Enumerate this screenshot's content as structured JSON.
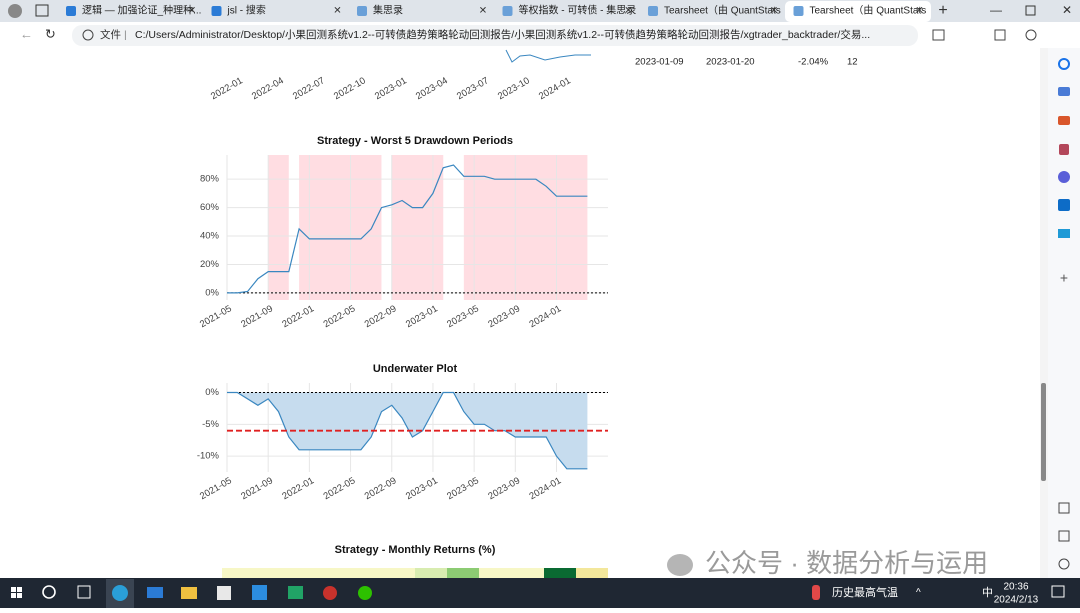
{
  "browser": {
    "tabs": [
      "逻辑 — 加强论证_种理种...",
      "jsl - 搜索",
      "集思录",
      "等权指数 - 可转债 - 集思录",
      "Tearsheet（由 QuantStats",
      "Tearsheet（由 QuantStats"
    ],
    "address_label": "文件",
    "url": "C:/Users/Administrator/Desktop/小果回测系统v1.2--可转债趋势策略轮动回测报告/小果回测系统v1.2--可转债趋势策略轮动回测报告/xgtrader_backtrader/交易..."
  },
  "top_chart": {
    "xticks": [
      "2022-01",
      "2022-04",
      "2022-07",
      "2022-10",
      "2023-01",
      "2023-04",
      "2023-07",
      "2023-10",
      "2024-01"
    ]
  },
  "table_row": [
    "2023-01-09",
    "2023-01-20",
    "-2.04%",
    "12"
  ],
  "drawdown_chart": {
    "type": "line",
    "title": "Strategy - Worst 5 Drawdown Periods",
    "x": [
      "2021-05",
      "2021-06",
      "2021-07",
      "2021-08",
      "2021-09",
      "2021-10",
      "2021-11",
      "2021-12",
      "2022-01",
      "2022-02",
      "2022-03",
      "2022-04",
      "2022-05",
      "2022-06",
      "2022-07",
      "2022-08",
      "2022-09",
      "2022-10",
      "2022-11",
      "2022-12",
      "2023-01",
      "2023-02",
      "2023-03",
      "2023-04",
      "2023-05",
      "2023-06",
      "2023-07",
      "2023-08",
      "2023-09",
      "2023-10",
      "2023-11",
      "2023-12",
      "2024-01",
      "2024-02",
      "2024-03",
      "2024-04"
    ],
    "values": [
      0,
      0,
      1,
      10,
      15,
      15,
      15,
      45,
      38,
      38,
      38,
      38,
      38,
      38,
      45,
      60,
      62,
      65,
      60,
      60,
      70,
      88,
      90,
      82,
      82,
      82,
      80,
      80,
      80,
      80,
      80,
      75,
      68,
      68,
      68,
      68
    ],
    "color": "#3a87c0",
    "periods": [
      [
        "2021-09",
        "2021-11"
      ],
      [
        "2021-12",
        "2022-08"
      ],
      [
        "2022-09",
        "2023-02"
      ],
      [
        "2023-04",
        "2024-04"
      ]
    ],
    "xlim": [
      "2021-05",
      "2024-06"
    ],
    "ylim": [
      -5,
      97
    ],
    "xticks": [
      "2021-05",
      "2021-09",
      "2022-01",
      "2022-05",
      "2022-09",
      "2023-01",
      "2023-05",
      "2023-09",
      "2024-01"
    ],
    "yticks": [
      {
        "value": 0,
        "label": "0%"
      },
      {
        "value": 20,
        "label": "20%"
      },
      {
        "value": 40,
        "label": "40%"
      },
      {
        "value": 60,
        "label": "60%"
      },
      {
        "value": 80,
        "label": "80%"
      }
    ],
    "grid": true
  },
  "underwater_chart": {
    "type": "area",
    "title": "Underwater Plot",
    "x": [
      "2021-05",
      "2021-06",
      "2021-07",
      "2021-08",
      "2021-09",
      "2021-10",
      "2021-11",
      "2021-12",
      "2022-01",
      "2022-02",
      "2022-03",
      "2022-04",
      "2022-05",
      "2022-06",
      "2022-07",
      "2022-08",
      "2022-09",
      "2022-10",
      "2022-11",
      "2022-12",
      "2023-01",
      "2023-02",
      "2023-03",
      "2023-04",
      "2023-05",
      "2023-06",
      "2023-07",
      "2023-08",
      "2023-09",
      "2023-10",
      "2023-11",
      "2023-12",
      "2024-01",
      "2024-02",
      "2024-03",
      "2024-04"
    ],
    "values": [
      0,
      0,
      -1,
      -2,
      -1,
      -3,
      -7,
      -9,
      -9,
      -9,
      -9,
      -9,
      -9,
      -9,
      -7,
      -3,
      -2,
      -4,
      -7,
      -6,
      -3,
      0,
      0,
      -3,
      -5,
      -5,
      -6,
      -6,
      -7,
      -7,
      -7,
      -7,
      -10,
      -12,
      -12,
      -12
    ],
    "color": "#3a87c0",
    "mean": -6,
    "xlim": [
      "2021-05",
      "2024-06"
    ],
    "ylim": [
      -12.5,
      1.5
    ],
    "xticks": [
      "2021-05",
      "2021-09",
      "2022-01",
      "2022-05",
      "2022-09",
      "2023-01",
      "2023-05",
      "2023-09",
      "2024-01"
    ],
    "yticks": [
      {
        "value": 0,
        "label": "0%"
      },
      {
        "value": -5,
        "label": "-5%"
      },
      {
        "value": -10,
        "label": "-10%"
      }
    ],
    "grid": true
  },
  "monthly_title": "Strategy - Monthly Returns (%)",
  "watermark": "公众号 · 数据分析与运用",
  "taskbar": {
    "weather": "历史最高气温",
    "ime": "中",
    "time": "20:36",
    "date": "2024/2/13"
  }
}
